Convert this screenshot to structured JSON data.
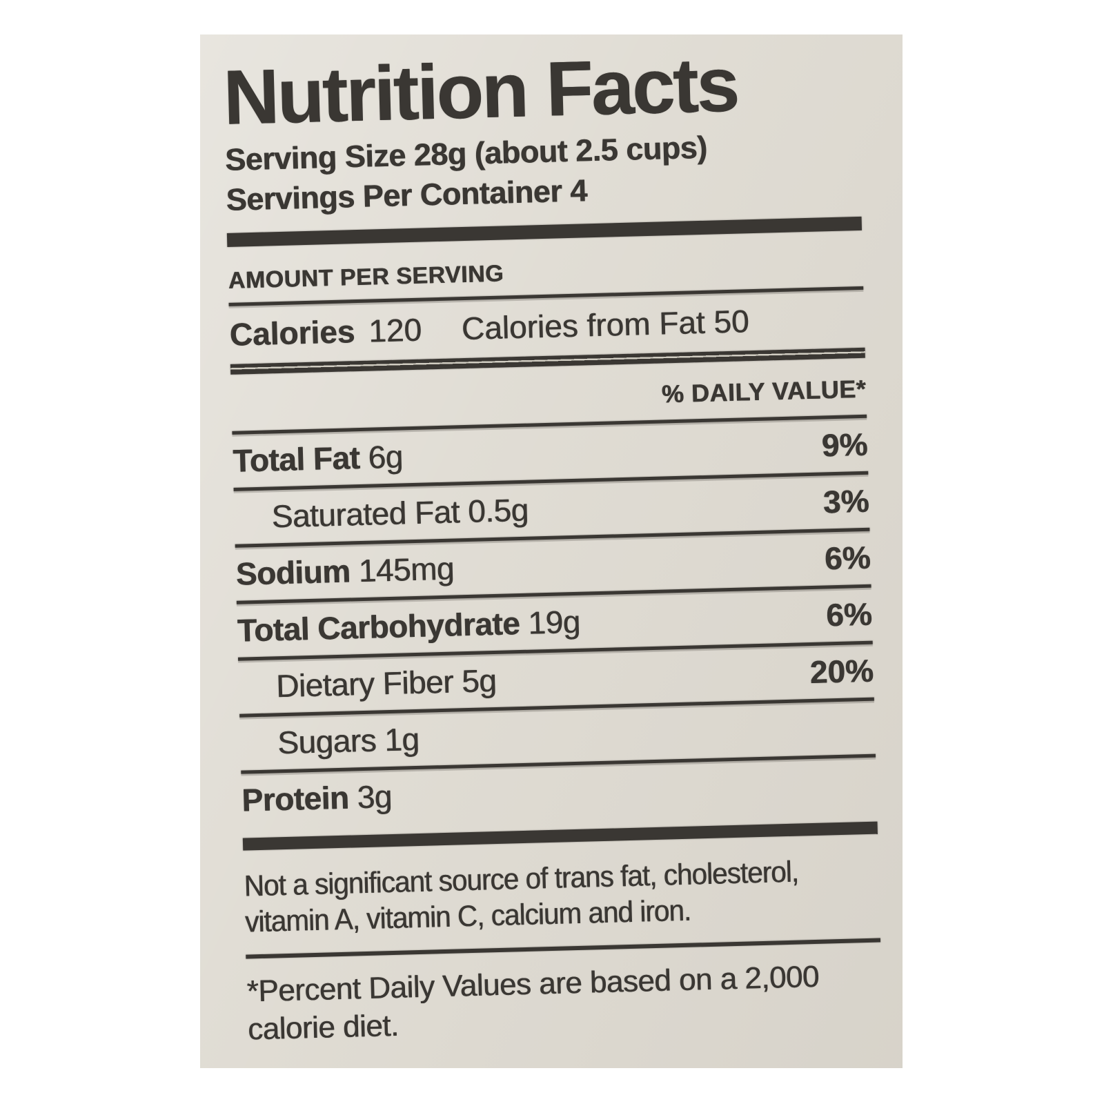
{
  "label": {
    "title": "Nutrition Facts",
    "serving": {
      "size": "Serving Size 28g (about 2.5 cups)",
      "per_container": "Servings Per Container 4"
    },
    "amount_per_serving": "AMOUNT PER SERVING",
    "calories": {
      "label": "Calories",
      "value": "120",
      "from_fat": "Calories from Fat 50"
    },
    "daily_value_header": "% DAILY VALUE*",
    "nutrients": [
      {
        "name": "Total Fat",
        "amount": "6g",
        "daily_value": "9%"
      },
      {
        "name": "Saturated Fat",
        "amount": "0.5g",
        "daily_value": "3%"
      },
      {
        "name": "Sodium",
        "amount": "145mg",
        "daily_value": "6%"
      },
      {
        "name": "Total Carbohydrate",
        "amount": "19g",
        "daily_value": "6%"
      },
      {
        "name": "Dietary Fiber",
        "amount": "5g",
        "daily_value": "20%"
      },
      {
        "name": "Sugars",
        "amount": "1g",
        "daily_value": ""
      },
      {
        "name": "Protein",
        "amount": "3g",
        "daily_value": ""
      }
    ],
    "notes": {
      "insignificant_line1": "Not a significant source of trans fat, cholesterol,",
      "insignificant_line2": "vitamin A, vitamin C, calcium and iron.",
      "footnote_line1": "*Percent Daily Values are based on a 2,000",
      "footnote_line2": "calorie diet."
    },
    "colors": {
      "page_bg": "#ffffff",
      "label_bg": "#dedad1",
      "ink": "#3a3733"
    }
  }
}
